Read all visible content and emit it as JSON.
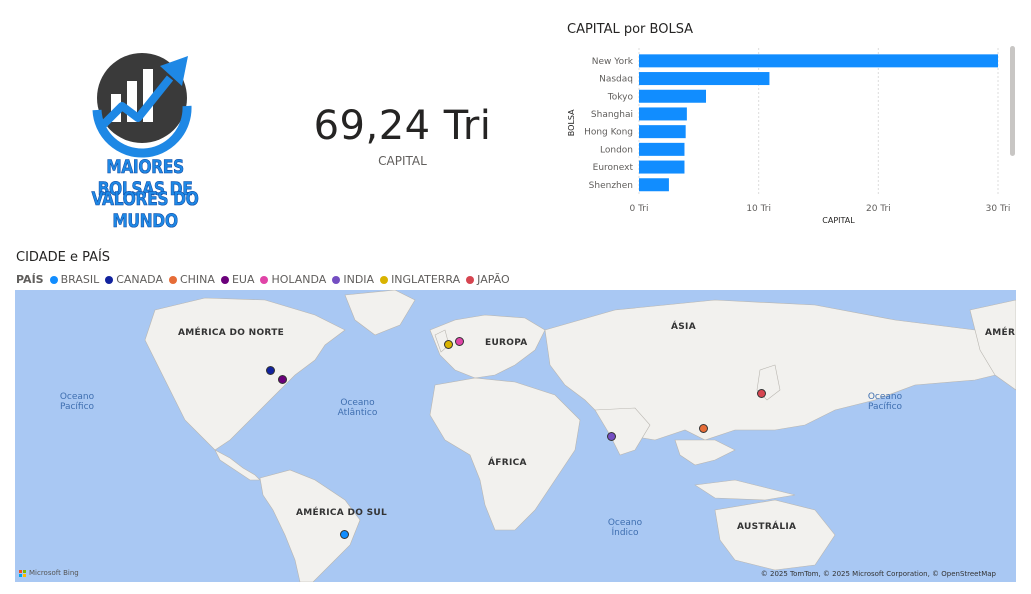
{
  "logo": {
    "line1": "MAIORES BOLSAS DE",
    "line2": "VALORES DO MUNDO"
  },
  "kpi": {
    "value": "69,24 Tri",
    "label": "CAPITAL"
  },
  "bar_chart": {
    "title": "CAPITAL por BOLSA"
  },
  "chart_data": {
    "type": "bar",
    "orientation": "horizontal",
    "title": "CAPITAL por BOLSA",
    "ylabel": "BOLSA",
    "xlabel": "CAPITAL",
    "categories": [
      "New York",
      "Nasdaq",
      "Tokyo",
      "Shanghai",
      "Hong Kong",
      "London",
      "Euronext",
      "Shenzhen"
    ],
    "values": [
      30.0,
      10.9,
      5.6,
      4.0,
      3.9,
      3.8,
      3.8,
      2.5
    ],
    "xlim": [
      0,
      30
    ],
    "xticks": [
      "0 Tri",
      "10 Tri",
      "20 Tri",
      "30 Tri"
    ],
    "color": "#118DFF",
    "grid": true
  },
  "map": {
    "title": "CIDADE e PAÍS",
    "legend_title": "PAÍS",
    "legend": [
      {
        "name": "BRASIL",
        "color": "#118DFF"
      },
      {
        "name": "CANADA",
        "color": "#12239E"
      },
      {
        "name": "CHINA",
        "color": "#E66C37"
      },
      {
        "name": "EUA",
        "color": "#6B007B"
      },
      {
        "name": "HOLANDA",
        "color": "#E044A7"
      },
      {
        "name": "INDIA",
        "color": "#744EC2"
      },
      {
        "name": "INGLATERRA",
        "color": "#D9B300"
      },
      {
        "name": "JAPÃO",
        "color": "#D64550"
      }
    ],
    "labels": {
      "north_america": "AMÉRICA DO NORTE",
      "europe": "EUROPA",
      "asia": "ÁSIA",
      "africa": "ÁFRICA",
      "south_america": "AMÉRICA DO SUL",
      "australia": "AUSTRÁLIA",
      "america_right": "AMÉRI"
    },
    "oceans": {
      "pacific_left": "Oceano Pacífico",
      "atlantic": "Oceano Atlântico",
      "indian": "Oceano Índico",
      "pacific_right": "Oceano Pacífico"
    },
    "attribution": "© 2025 TomTom, © 2025 Microsoft Corporation, © OpenStreetMap",
    "bing": "Microsoft Bing"
  }
}
